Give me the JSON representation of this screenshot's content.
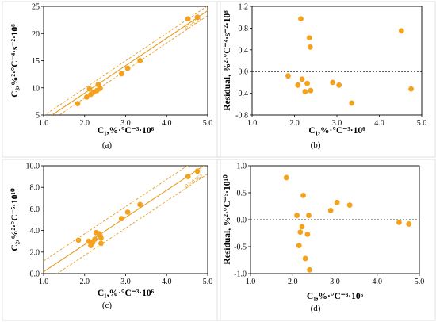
{
  "colors": {
    "marker": "#F4A11E",
    "line": "#E69A1D",
    "axis": "#000000",
    "frame": "#D9D9D9"
  },
  "chart_data": [
    {
      "panel": "(a)",
      "type": "scatter",
      "xlabel": "C₁,%·°C⁻³·10⁶",
      "ylabel": "C₃,%²·°C⁻⁴·s⁻²·10⁸",
      "xlim": [
        1.0,
        5.0
      ],
      "ylim": [
        5,
        25
      ],
      "xticks": [
        "1.0",
        "2.0",
        "3.0",
        "4.0",
        "5.0"
      ],
      "yticks": [
        "5",
        "10",
        "15",
        "20",
        "25"
      ],
      "annotation": "R²=0.99",
      "fit": {
        "slope": 5.06,
        "intercept": -1.1,
        "band": 0.9
      },
      "points": [
        [
          1.83,
          7.1
        ],
        [
          2.05,
          8.3
        ],
        [
          2.12,
          9.8
        ],
        [
          2.15,
          8.8
        ],
        [
          2.22,
          9.2
        ],
        [
          2.3,
          9.5
        ],
        [
          2.33,
          10.6
        ],
        [
          2.38,
          9.9
        ],
        [
          2.9,
          12.6
        ],
        [
          3.05,
          13.6
        ],
        [
          3.35,
          15.0
        ],
        [
          4.52,
          22.7
        ],
        [
          4.75,
          23.0
        ]
      ]
    },
    {
      "panel": "(b)",
      "type": "scatter",
      "xlabel": "C₁,%·°C⁻³·10⁶",
      "ylabel": "Residual, %²·°C⁻⁴·s⁻²·10⁸",
      "xlim": [
        1.0,
        5.0
      ],
      "ylim": [
        -0.8,
        1.2
      ],
      "xticks": [
        "1.0",
        "2.0",
        "3.0",
        "4.0",
        "5.0"
      ],
      "yticks": [
        "-0.8",
        "-0.4",
        "0.0",
        "0.4",
        "0.8",
        "1.2"
      ],
      "points": [
        [
          1.85,
          -0.08
        ],
        [
          2.08,
          -0.25
        ],
        [
          2.15,
          0.97
        ],
        [
          2.18,
          -0.14
        ],
        [
          2.25,
          -0.37
        ],
        [
          2.3,
          -0.22
        ],
        [
          2.35,
          0.62
        ],
        [
          2.37,
          0.45
        ],
        [
          2.38,
          -0.35
        ],
        [
          2.9,
          -0.2
        ],
        [
          3.05,
          -0.25
        ],
        [
          3.35,
          -0.58
        ],
        [
          4.52,
          0.75
        ],
        [
          4.75,
          -0.32
        ]
      ]
    },
    {
      "panel": "(c)",
      "type": "scatter",
      "xlabel": "C₁,%·°C⁻³·10⁶",
      "ylabel": "C₂,%²·°C⁻⁵·10¹⁰",
      "xlim": [
        1.0,
        5.0
      ],
      "ylim": [
        0.0,
        10.0
      ],
      "xticks": [
        "1.0",
        "2.0",
        "3.0",
        "4.0",
        "5.0"
      ],
      "yticks": [
        "0.0",
        "2.0",
        "4.0",
        "6.0",
        "8.0",
        "10.0"
      ],
      "annotation": "R²=0.967",
      "fit": {
        "slope": 2.52,
        "intercept": -2.35,
        "band": 1.0
      },
      "points": [
        [
          1.85,
          3.1
        ],
        [
          2.1,
          3.0
        ],
        [
          2.15,
          2.6
        ],
        [
          2.2,
          2.9
        ],
        [
          2.25,
          3.2
        ],
        [
          2.28,
          3.8
        ],
        [
          2.35,
          3.7
        ],
        [
          2.38,
          3.5
        ],
        [
          2.4,
          3.3
        ],
        [
          2.4,
          2.8
        ],
        [
          2.9,
          5.1
        ],
        [
          3.05,
          5.7
        ],
        [
          3.35,
          6.4
        ],
        [
          4.52,
          9.0
        ],
        [
          4.75,
          9.5
        ]
      ]
    },
    {
      "panel": "(d)",
      "type": "scatter",
      "xlabel": "C₁,%·°C⁻³·10⁶",
      "ylabel": "Residual, %²·°C⁻⁵·10¹⁰",
      "xlim": [
        1.0,
        5.0
      ],
      "ylim": [
        -1.0,
        1.0
      ],
      "xticks": [
        "1.0",
        "2.0",
        "3.0",
        "4.0",
        "5.0"
      ],
      "yticks": [
        "-1.0",
        "-0.5",
        "0.0",
        "0.5",
        "1.0"
      ],
      "points": [
        [
          1.85,
          0.78
        ],
        [
          2.1,
          0.08
        ],
        [
          2.15,
          -0.48
        ],
        [
          2.18,
          -0.23
        ],
        [
          2.22,
          -0.13
        ],
        [
          2.25,
          0.45
        ],
        [
          2.3,
          -0.72
        ],
        [
          2.35,
          -0.27
        ],
        [
          2.38,
          0.08
        ],
        [
          2.4,
          -0.93
        ],
        [
          2.9,
          0.17
        ],
        [
          3.05,
          0.32
        ],
        [
          3.35,
          0.27
        ],
        [
          4.52,
          -0.05
        ],
        [
          4.75,
          -0.08
        ]
      ]
    }
  ]
}
